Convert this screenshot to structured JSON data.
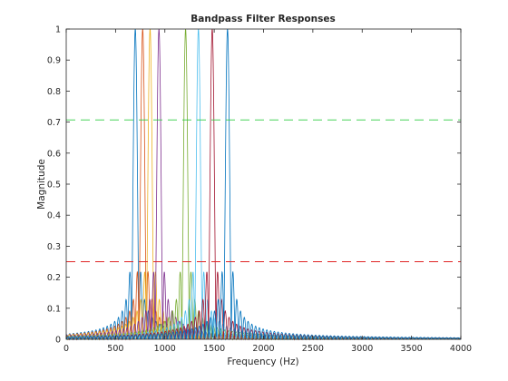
{
  "chart_data": {
    "type": "line",
    "title": "Bandpass Filter Responses",
    "xlabel": "Frequency (Hz)",
    "ylabel": "Magnitude",
    "xlim": [
      0,
      4000
    ],
    "ylim": [
      0,
      1
    ],
    "xticks": [
      0,
      500,
      1000,
      1500,
      2000,
      2500,
      3000,
      3500,
      4000
    ],
    "yticks": [
      0,
      0.1,
      0.2,
      0.3,
      0.4,
      0.5,
      0.6,
      0.7,
      0.8,
      0.9,
      1
    ],
    "ytick_labels": [
      "0",
      "0.1",
      "0.2",
      "0.3",
      "0.4",
      "0.5",
      "0.6",
      "0.7",
      "0.8",
      "0.9",
      "1"
    ],
    "grid": false,
    "legend": "none",
    "reference_lines": [
      {
        "y": 0.707,
        "color": "#2ecc40",
        "style": "dashed"
      },
      {
        "y": 0.25,
        "color": "#e02424",
        "style": "dashed"
      }
    ],
    "series": [
      {
        "center_hz": 700,
        "peak": 1,
        "color": "#0072BD"
      },
      {
        "center_hz": 775,
        "peak": 1,
        "color": "#D95319"
      },
      {
        "center_hz": 850,
        "peak": 1,
        "color": "#EDB120"
      },
      {
        "center_hz": 940,
        "peak": 1,
        "color": "#7E2F8E"
      },
      {
        "center_hz": 1210,
        "peak": 1,
        "color": "#77AC30"
      },
      {
        "center_hz": 1340,
        "peak": 1,
        "color": "#4DBEEE"
      },
      {
        "center_hz": 1480,
        "peak": 1,
        "color": "#A2142F"
      },
      {
        "center_hz": 1635,
        "peak": 1,
        "color": "#0072BD"
      }
    ]
  }
}
